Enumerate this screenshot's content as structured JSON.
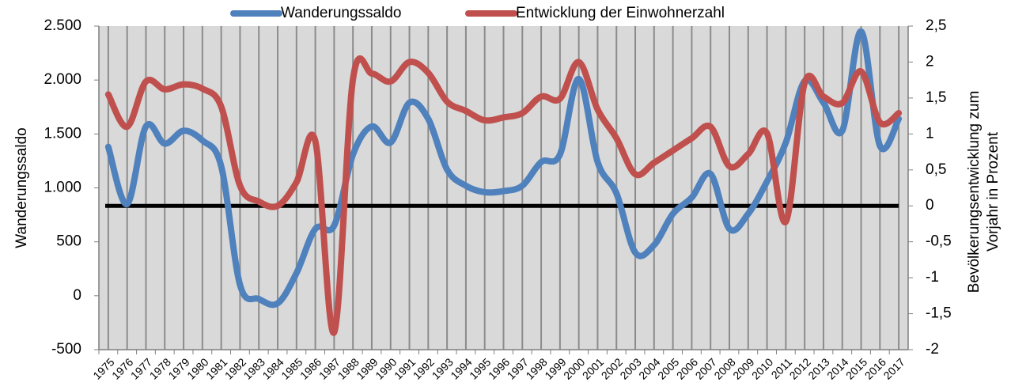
{
  "chart_data": {
    "type": "line",
    "categories": [
      "1975",
      "1976",
      "1977",
      "1978",
      "1979",
      "1980",
      "1981",
      "1982",
      "1983",
      "1984",
      "1985",
      "1986",
      "1987",
      "1988",
      "1989",
      "1990",
      "1991",
      "1992",
      "1993",
      "1994",
      "1995",
      "1996",
      "1997",
      "1998",
      "1999",
      "2000",
      "2001",
      "2002",
      "2003",
      "2004",
      "2005",
      "2006",
      "2007",
      "2008",
      "2009",
      "2010",
      "2011",
      "2012",
      "2013",
      "2014",
      "2015",
      "2016",
      "2017"
    ],
    "series": [
      {
        "name": "Wanderungssaldo",
        "color": "#4f81bd",
        "values": [
          1380,
          850,
          1570,
          1410,
          1530,
          1440,
          1200,
          100,
          -30,
          -70,
          210,
          620,
          650,
          1310,
          1570,
          1420,
          1790,
          1640,
          1170,
          1020,
          960,
          970,
          1020,
          1240,
          1310,
          2010,
          1240,
          950,
          400,
          470,
          760,
          910,
          1130,
          620,
          760,
          1060,
          1420,
          1990,
          1790,
          1530,
          2450,
          1390,
          1640
        ]
      },
      {
        "name": "Entwicklung der Einwohnerzahl",
        "color": "#c0504d",
        "axis": "y2",
        "values": [
          1.55,
          1.1,
          1.73,
          1.62,
          1.69,
          1.63,
          1.38,
          0.28,
          0.06,
          0,
          0.33,
          0.9,
          -1.76,
          1.76,
          1.84,
          1.73,
          2.0,
          1.85,
          1.45,
          1.32,
          1.19,
          1.23,
          1.29,
          1.52,
          1.49,
          2.0,
          1.34,
          0.94,
          0.44,
          0.6,
          0.77,
          0.94,
          1.1,
          0.55,
          0.72,
          1.01,
          -0.22,
          1.71,
          1.52,
          1.43,
          1.87,
          1.16,
          1.29
        ]
      }
    ],
    "ylabel": "Wanderungssaldo",
    "y2label": [
      "Bevölkerungsentwicklung zum",
      "Vorjahr in Prozent"
    ],
    "ylim": [
      -500,
      2500
    ],
    "yticks": [
      -500,
      0,
      500,
      {
        "value": 1000,
        "label": "1.000"
      },
      {
        "value": 1500,
        "label": "1.500"
      },
      {
        "value": 2000,
        "label": "2.000"
      },
      {
        "value": 2500,
        "label": "2.500"
      }
    ],
    "y2lim": [
      -2,
      2.5
    ],
    "y2ticks": [
      -2,
      {
        "value": -1.5,
        "label": "-1,5"
      },
      -1,
      {
        "value": -0.5,
        "label": "-0,5"
      },
      0,
      {
        "value": 0.5,
        "label": "0,5"
      },
      1,
      {
        "value": 1.5,
        "label": "1,5"
      },
      2,
      {
        "value": 2.5,
        "label": "2,5"
      }
    ],
    "zeroline": "y2",
    "grid": "x",
    "legend": "top"
  }
}
